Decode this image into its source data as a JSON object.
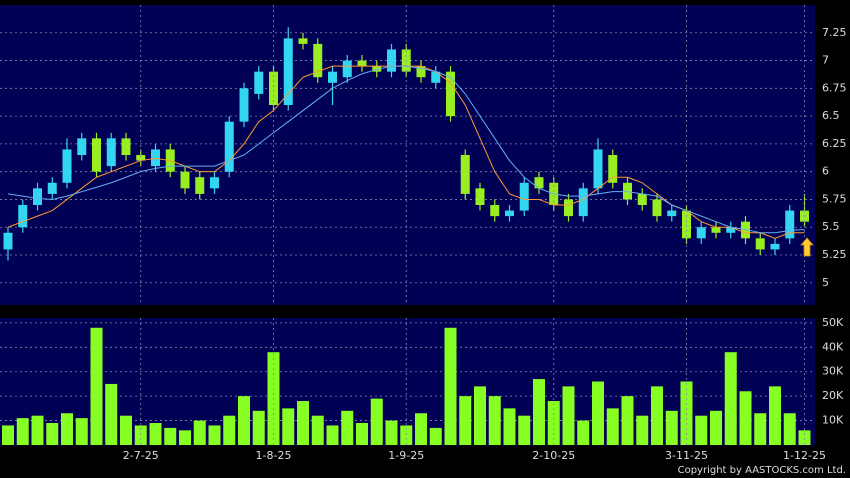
{
  "chart_data": [
    {
      "type": "candlestick",
      "up_color": "#33d6f0",
      "down_color": "#99ee22",
      "grid": true,
      "open": [
        5.3,
        5.5,
        5.7,
        5.8,
        5.9,
        6.15,
        6.3,
        6.05,
        6.3,
        6.15,
        6.05,
        6.2,
        6.0,
        5.95,
        5.85,
        6.0,
        6.45,
        6.7,
        6.9,
        6.6,
        7.2,
        7.15,
        6.8,
        6.85,
        7.0,
        6.95,
        6.9,
        7.1,
        6.95,
        6.8,
        6.9,
        6.15,
        5.85,
        5.7,
        5.6,
        5.65,
        5.95,
        5.9,
        5.75,
        5.6,
        5.85,
        6.15,
        5.9,
        5.8,
        5.75,
        5.6,
        5.65,
        5.4,
        5.5,
        5.45,
        5.55,
        5.4,
        5.3,
        5.4,
        5.65
      ],
      "high": [
        5.5,
        5.75,
        5.9,
        5.95,
        6.3,
        6.35,
        6.35,
        6.35,
        6.35,
        6.2,
        6.25,
        6.25,
        6.05,
        6.0,
        6.0,
        6.5,
        6.8,
        6.95,
        6.95,
        7.3,
        7.25,
        7.2,
        6.95,
        7.05,
        7.05,
        7.0,
        7.15,
        7.15,
        7.0,
        6.95,
        6.95,
        6.2,
        5.9,
        5.75,
        5.7,
        5.95,
        6.0,
        5.95,
        5.8,
        5.9,
        6.3,
        6.2,
        5.95,
        5.85,
        5.8,
        5.7,
        5.7,
        5.55,
        5.55,
        5.55,
        5.6,
        5.45,
        5.4,
        5.7,
        5.8
      ],
      "low": [
        5.2,
        5.45,
        5.65,
        5.75,
        5.85,
        6.1,
        5.95,
        6.0,
        6.1,
        6.05,
        6.0,
        5.95,
        5.8,
        5.75,
        5.8,
        5.95,
        6.4,
        6.65,
        6.55,
        6.55,
        7.1,
        6.8,
        6.6,
        6.8,
        6.9,
        6.85,
        6.85,
        6.85,
        6.8,
        6.75,
        6.45,
        5.75,
        5.65,
        5.55,
        5.55,
        5.6,
        5.8,
        5.65,
        5.55,
        5.55,
        5.8,
        5.85,
        5.7,
        5.65,
        5.55,
        5.55,
        5.35,
        5.35,
        5.4,
        5.4,
        5.35,
        5.25,
        5.25,
        5.35,
        5.5
      ],
      "close": [
        5.45,
        5.7,
        5.85,
        5.9,
        6.2,
        6.3,
        6.0,
        6.3,
        6.15,
        6.1,
        6.2,
        6.0,
        5.85,
        5.8,
        5.95,
        6.45,
        6.75,
        6.9,
        6.6,
        7.2,
        7.15,
        6.85,
        6.9,
        7.0,
        6.95,
        6.9,
        7.1,
        6.9,
        6.85,
        6.9,
        6.5,
        5.8,
        5.7,
        5.6,
        5.65,
        5.9,
        5.85,
        5.7,
        5.6,
        5.85,
        6.2,
        5.9,
        5.75,
        5.7,
        5.6,
        5.65,
        5.4,
        5.5,
        5.45,
        5.5,
        5.4,
        5.3,
        5.35,
        5.65,
        5.55
      ],
      "series": [
        {
          "color": "#ff9933",
          "values": [
            5.5,
            5.55,
            5.6,
            5.65,
            5.75,
            5.85,
            5.95,
            6.0,
            6.05,
            6.1,
            6.12,
            6.1,
            6.05,
            6.0,
            6.0,
            6.1,
            6.25,
            6.45,
            6.55,
            6.7,
            6.85,
            6.9,
            6.95,
            6.95,
            6.95,
            6.95,
            6.95,
            6.95,
            6.95,
            6.9,
            6.8,
            6.6,
            6.3,
            6.0,
            5.8,
            5.75,
            5.75,
            5.7,
            5.7,
            5.75,
            5.85,
            5.95,
            5.95,
            5.9,
            5.8,
            5.7,
            5.65,
            5.55,
            5.5,
            5.5,
            5.45,
            5.45,
            5.4,
            5.45,
            5.45
          ]
        },
        {
          "color": "#66b0f0",
          "values": [
            5.8,
            5.78,
            5.76,
            5.75,
            5.78,
            5.82,
            5.86,
            5.9,
            5.95,
            6.0,
            6.03,
            6.05,
            6.05,
            6.05,
            6.05,
            6.1,
            6.15,
            6.25,
            6.35,
            6.45,
            6.55,
            6.65,
            6.75,
            6.82,
            6.88,
            6.92,
            6.95,
            6.95,
            6.93,
            6.9,
            6.85,
            6.7,
            6.5,
            6.3,
            6.1,
            5.95,
            5.85,
            5.8,
            5.78,
            5.78,
            5.8,
            5.82,
            5.82,
            5.8,
            5.78,
            5.7,
            5.65,
            5.6,
            5.55,
            5.5,
            5.48,
            5.45,
            5.45,
            5.47,
            5.48
          ]
        }
      ],
      "ylim": [
        4.8,
        7.5
      ],
      "yticks": [
        5,
        5.25,
        5.5,
        5.75,
        6,
        6.25,
        6.5,
        6.75,
        7,
        7.25
      ]
    },
    {
      "type": "bar",
      "color": "#88ff22",
      "grid": true,
      "categories": [
        null,
        null,
        null,
        null,
        null,
        null,
        null,
        null,
        null,
        "2-7-25",
        null,
        null,
        null,
        null,
        null,
        null,
        null,
        null,
        "1-8-25",
        null,
        null,
        null,
        null,
        null,
        null,
        null,
        null,
        "1-9-25",
        null,
        null,
        null,
        null,
        null,
        null,
        null,
        null,
        null,
        "2-10-25",
        null,
        null,
        null,
        null,
        null,
        null,
        null,
        null,
        "3-11-25",
        null,
        null,
        null,
        null,
        null,
        null,
        null,
        "1-12-25"
      ],
      "values": [
        8000,
        11000,
        12000,
        9000,
        13000,
        11000,
        48000,
        25000,
        12000,
        8000,
        9000,
        7000,
        6000,
        10000,
        8000,
        12000,
        20000,
        14000,
        38000,
        15000,
        18000,
        12000,
        8000,
        14000,
        9000,
        19000,
        10000,
        8000,
        13000,
        7000,
        48000,
        20000,
        24000,
        20000,
        15000,
        12000,
        27000,
        18000,
        24000,
        10000,
        26000,
        15000,
        20000,
        12000,
        24000,
        14000,
        26000,
        12000,
        14000,
        38000,
        22000,
        13000,
        24000,
        13000,
        6000
      ],
      "ylim": [
        0,
        52000
      ],
      "yticks": [
        {
          "value": 10000,
          "label": "10K"
        },
        {
          "value": 20000,
          "label": "20K"
        },
        {
          "value": 30000,
          "label": "30K"
        },
        {
          "value": 40000,
          "label": "40K"
        },
        {
          "value": 50000,
          "label": "50K"
        }
      ],
      "footnote": "Copyright by AASTOCKS.com Ltd."
    }
  ]
}
